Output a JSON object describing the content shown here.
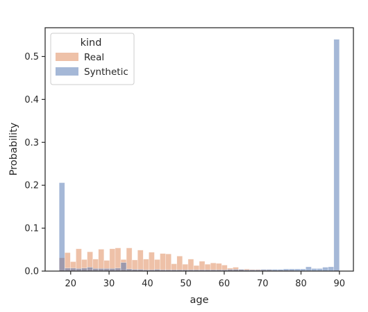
{
  "chart_data": {
    "type": "bar",
    "title": "",
    "xlabel": "age",
    "ylabel": "Probability",
    "xlim": [
      13.35,
      93.65
    ],
    "ylim": [
      0,
      0.567
    ],
    "xticks": [
      20,
      30,
      40,
      50,
      60,
      70,
      80,
      90
    ],
    "yticks": [
      0.0,
      0.1,
      0.2,
      0.3,
      0.4,
      0.5
    ],
    "ytick_labels": [
      "0.0",
      "0.1",
      "0.2",
      "0.3",
      "0.4",
      "0.5"
    ],
    "grid": false,
    "legend": {
      "title": "kind",
      "placement": "top-left"
    },
    "bin_start": 17,
    "bin_width": 1.46,
    "series": [
      {
        "name": "Real",
        "color": "#dd8452",
        "values": [
          0.031,
          0.043,
          0.022,
          0.052,
          0.027,
          0.045,
          0.028,
          0.051,
          0.025,
          0.052,
          0.054,
          0.027,
          0.054,
          0.026,
          0.049,
          0.028,
          0.044,
          0.027,
          0.041,
          0.04,
          0.017,
          0.035,
          0.016,
          0.028,
          0.013,
          0.023,
          0.016,
          0.019,
          0.018,
          0.014,
          0.007,
          0.009,
          0.004,
          0.005,
          0.004,
          0.004,
          0.003,
          0.003,
          0.002,
          0.002,
          0.002,
          0.002,
          0.001,
          0.001,
          0.001,
          0.001,
          0.001,
          0.001,
          0.001,
          0.002
        ]
      },
      {
        "name": "Synthetic",
        "color": "#4c72b0",
        "values": [
          0.206,
          0.007,
          0.007,
          0.006,
          0.007,
          0.009,
          0.006,
          0.006,
          0.006,
          0.006,
          0.007,
          0.02,
          0.005,
          0.004,
          0.004,
          0.003,
          0.003,
          0.004,
          0.003,
          0.003,
          0.003,
          0.003,
          0.003,
          0.003,
          0.003,
          0.003,
          0.003,
          0.003,
          0.003,
          0.003,
          0.004,
          0.004,
          0.004,
          0.003,
          0.003,
          0.003,
          0.004,
          0.004,
          0.004,
          0.004,
          0.005,
          0.005,
          0.005,
          0.005,
          0.01,
          0.006,
          0.006,
          0.009,
          0.01,
          0.54
        ]
      }
    ]
  }
}
